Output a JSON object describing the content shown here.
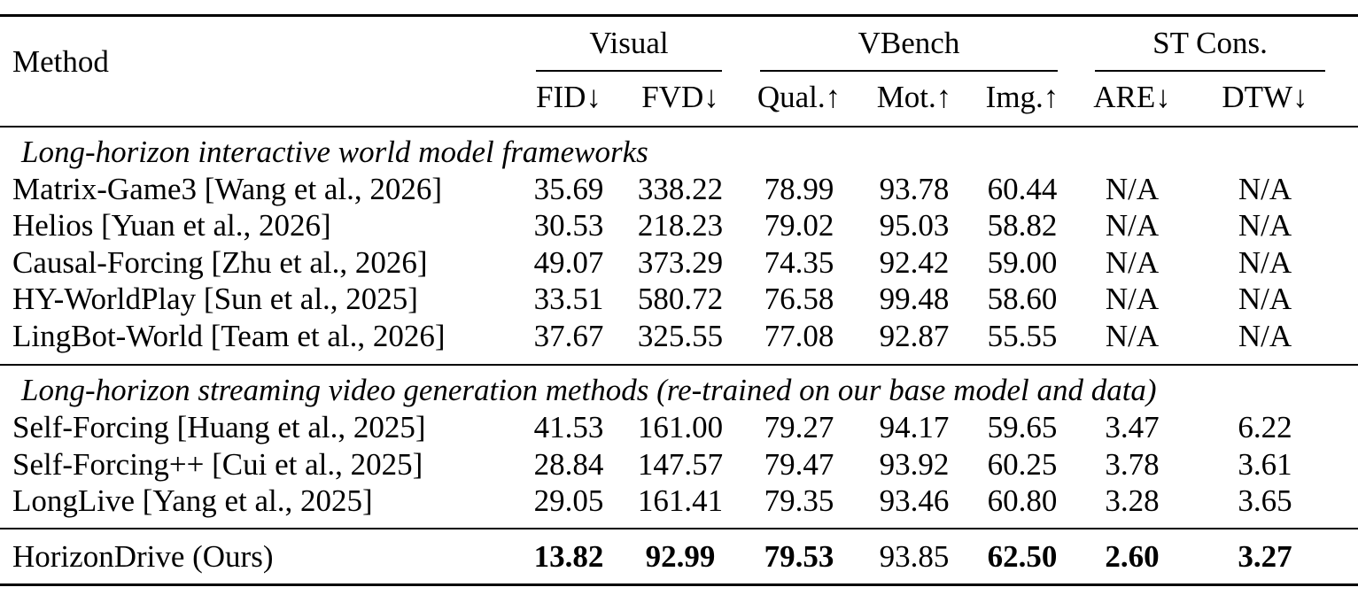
{
  "header": {
    "method_label": "Method",
    "groups": [
      {
        "label": "Visual",
        "columns": [
          "FID↓",
          "FVD↓"
        ]
      },
      {
        "label": "VBench",
        "columns": [
          "Qual.↑",
          "Mot.↑",
          "Img.↑"
        ]
      },
      {
        "label": "ST Cons.",
        "columns": [
          "ARE↓",
          "DTW↓"
        ]
      }
    ]
  },
  "sections": [
    {
      "title": "Long-horizon interactive world model frameworks",
      "rows": [
        {
          "method": "Matrix-Game3 [Wang et al., 2026]",
          "values": [
            "35.69",
            "338.22",
            "78.99",
            "93.78",
            "60.44",
            "N/A",
            "N/A"
          ]
        },
        {
          "method": "Helios [Yuan et al., 2026]",
          "values": [
            "30.53",
            "218.23",
            "79.02",
            "95.03",
            "58.82",
            "N/A",
            "N/A"
          ]
        },
        {
          "method": "Causal-Forcing [Zhu et al., 2026]",
          "values": [
            "49.07",
            "373.29",
            "74.35",
            "92.42",
            "59.00",
            "N/A",
            "N/A"
          ]
        },
        {
          "method": "HY-WorldPlay [Sun et al., 2025]",
          "values": [
            "33.51",
            "580.72",
            "76.58",
            "99.48",
            "58.60",
            "N/A",
            "N/A"
          ]
        },
        {
          "method": "LingBot-World [Team et al., 2026]",
          "values": [
            "37.67",
            "325.55",
            "77.08",
            "92.87",
            "55.55",
            "N/A",
            "N/A"
          ]
        }
      ]
    },
    {
      "title": "Long-horizon streaming video generation methods (re-trained on our base model and data)",
      "rows": [
        {
          "method": "Self-Forcing [Huang et al., 2025]",
          "values": [
            "41.53",
            "161.00",
            "79.27",
            "94.17",
            "59.65",
            "3.47",
            "6.22"
          ]
        },
        {
          "method": "Self-Forcing++ [Cui et al., 2025]",
          "values": [
            "28.84",
            "147.57",
            "79.47",
            "93.92",
            "60.25",
            "3.78",
            "3.61"
          ]
        },
        {
          "method": "LongLive [Yang et al., 2025]",
          "values": [
            "29.05",
            "161.41",
            "79.35",
            "93.46",
            "60.80",
            "3.28",
            "3.65"
          ]
        }
      ]
    }
  ],
  "ours": {
    "method": "HorizonDrive (Ours)",
    "values": [
      "13.82",
      "92.99",
      "79.53",
      "93.85",
      "62.50",
      "2.60",
      "3.27"
    ],
    "bold": [
      true,
      true,
      true,
      false,
      true,
      true,
      true
    ]
  }
}
